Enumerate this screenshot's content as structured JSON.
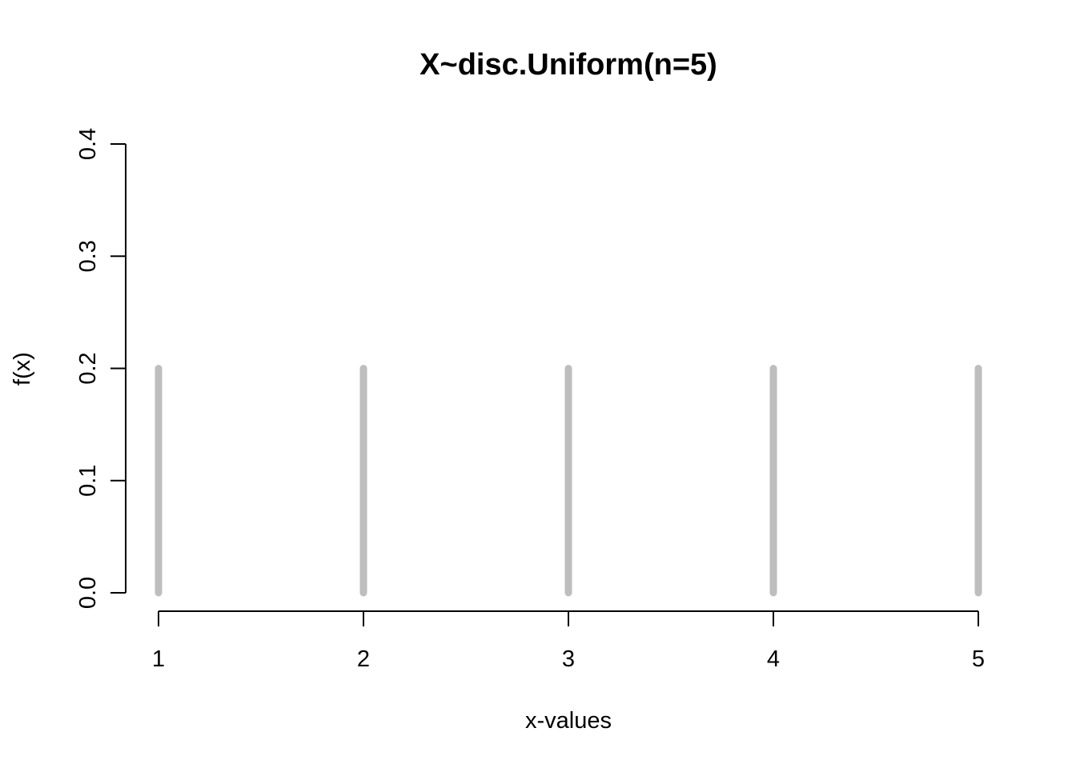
{
  "chart_data": {
    "type": "bar",
    "title": "X~disc.Uniform(n=5)",
    "xlabel": "x-values",
    "ylabel": "f(x)",
    "x": [
      1,
      2,
      3,
      4,
      5
    ],
    "values": [
      0.2,
      0.2,
      0.2,
      0.2,
      0.2
    ],
    "xlim": [
      1,
      5
    ],
    "ylim": [
      0,
      0.4
    ],
    "x_ticks": [
      1,
      2,
      3,
      4,
      5
    ],
    "x_tick_labels": [
      "1",
      "2",
      "3",
      "4",
      "5"
    ],
    "y_ticks": [
      0,
      0.1,
      0.2,
      0.3,
      0.4
    ],
    "y_tick_labels": [
      "0.0",
      "0.1",
      "0.2",
      "0.3",
      "0.4"
    ],
    "grid": false,
    "legend": false,
    "spike_color": "#bebebe"
  }
}
